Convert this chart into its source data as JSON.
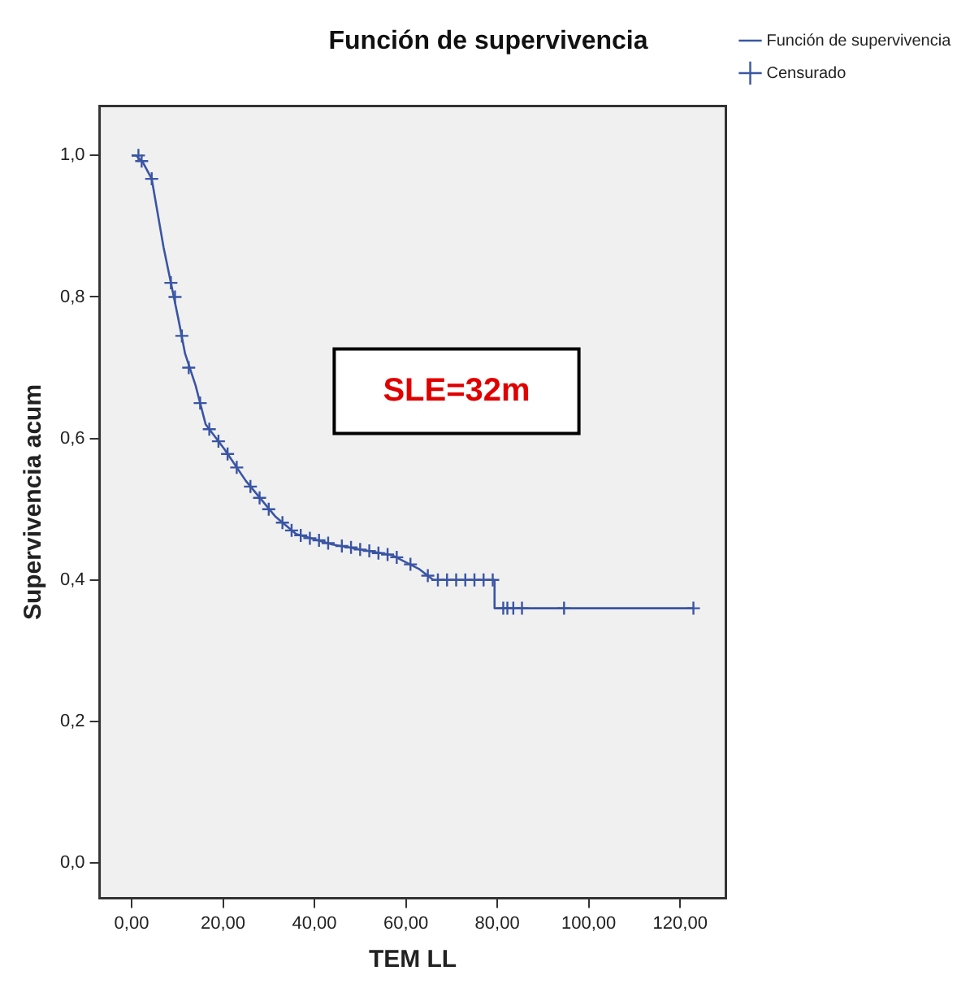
{
  "chart_data": {
    "type": "step",
    "title": "Función de supervivencia",
    "xlabel": "TEM LL",
    "ylabel": "Supervivencia acum",
    "annotations": [
      "SLE=32m"
    ],
    "xlim": [
      -7,
      130
    ],
    "ylim": [
      -0.05,
      1.07
    ],
    "xticks": [
      {
        "value": 0,
        "label": "0,00"
      },
      {
        "value": 20,
        "label": "20,00"
      },
      {
        "value": 40,
        "label": "40,00"
      },
      {
        "value": 60,
        "label": "60,00"
      },
      {
        "value": 80,
        "label": "80,00"
      },
      {
        "value": 100,
        "label": "100,00"
      },
      {
        "value": 120,
        "label": "120,00"
      }
    ],
    "yticks": [
      {
        "value": 0,
        "label": "0,0"
      },
      {
        "value": 0.2,
        "label": "0,2"
      },
      {
        "value": 0.4,
        "label": "0,4"
      },
      {
        "value": 0.6,
        "label": "0,6"
      },
      {
        "value": 0.8,
        "label": "0,8"
      },
      {
        "value": 1,
        "label": "1,0"
      }
    ],
    "grid": false,
    "legend": "top right",
    "series": [
      {
        "name": "Función de supervivencia",
        "color": "#3a55a4",
        "marker": "none",
        "x": [
          0,
          1,
          2.5,
          4.4,
          7,
          8.6,
          10.2,
          11.7,
          14,
          16.2,
          20.3,
          25,
          31.4,
          36,
          44,
          57,
          63,
          66,
          79.4,
          79.4,
          122.9
        ],
        "values": [
          1,
          1,
          0.99,
          0.967,
          0.87,
          0.82,
          0.77,
          0.72,
          0.675,
          0.62,
          0.585,
          0.54,
          0.49,
          0.465,
          0.45,
          0.435,
          0.415,
          0.4,
          0.4,
          0.36,
          0.36
        ]
      },
      {
        "name": "Censurado",
        "type": "scatter",
        "color": "#3a55a4",
        "marker": "cross",
        "x": [
          1.5,
          2.2,
          4.4,
          8.6,
          9.5,
          11,
          12.5,
          15,
          17,
          19,
          21,
          23,
          26,
          28,
          30,
          33,
          35,
          37,
          39,
          41,
          43,
          46,
          48,
          50,
          52,
          54,
          56,
          58,
          61,
          64.8,
          67,
          69,
          71,
          73,
          75,
          77,
          79,
          81.3,
          82.2,
          83.5,
          85.4,
          94.6,
          122.9
        ],
        "values": [
          1,
          0.992,
          0.967,
          0.82,
          0.8,
          0.745,
          0.7,
          0.65,
          0.613,
          0.596,
          0.578,
          0.559,
          0.532,
          0.516,
          0.5,
          0.481,
          0.47,
          0.463,
          0.459,
          0.456,
          0.452,
          0.448,
          0.446,
          0.443,
          0.441,
          0.438,
          0.436,
          0.432,
          0.422,
          0.406,
          0.4,
          0.4,
          0.4,
          0.4,
          0.4,
          0.4,
          0.4,
          0.36,
          0.36,
          0.36,
          0.36,
          0.36,
          0.36
        ]
      }
    ]
  }
}
